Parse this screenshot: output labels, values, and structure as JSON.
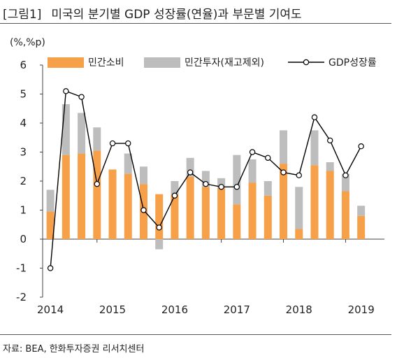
{
  "title": {
    "tag": "[그림1]",
    "main": "미국의 분기별 GDP 성장률(연율)과 부문별 기여도"
  },
  "source": "자료: BEA, 한화투자증권 리서치센터",
  "chart_data": {
    "type": "bar",
    "ylabel": "(%,%p)",
    "ylim": [
      -2,
      6
    ],
    "yticks": [
      "6",
      "5",
      "4",
      "3",
      "2",
      "1",
      "0",
      "-1",
      "-2"
    ],
    "x_years": [
      "2014",
      "2015",
      "2016",
      "2017",
      "2018",
      "2019"
    ],
    "legend": {
      "position": "top",
      "entries": [
        "민간소비",
        "민간투자(재고제외)",
        "GDP성장률"
      ]
    },
    "colors": {
      "consumption": "#F7A04A",
      "investment": "#BDBDBD",
      "gdp": "#000000"
    },
    "categories": [
      "2014Q1",
      "2014Q2",
      "2014Q3",
      "2014Q4",
      "2015Q1",
      "2015Q2",
      "2015Q3",
      "2015Q4",
      "2016Q1",
      "2016Q2",
      "2016Q3",
      "2016Q4",
      "2017Q1",
      "2017Q2",
      "2017Q3",
      "2017Q4",
      "2018Q1",
      "2018Q2",
      "2018Q3",
      "2018Q4",
      "2019Q1",
      "2019Q2"
    ],
    "series": [
      {
        "name": "민간소비",
        "kind": "bar",
        "values": [
          0.95,
          2.9,
          2.95,
          3.05,
          2.4,
          2.25,
          1.9,
          1.55,
          1.55,
          2.15,
          1.8,
          1.75,
          1.2,
          1.95,
          1.5,
          2.6,
          0.35,
          2.55,
          2.35,
          1.65,
          0.8,
          0
        ]
      },
      {
        "name": "민간투자(재고제외)",
        "kind": "bar",
        "values": [
          0.75,
          1.75,
          1.4,
          0.8,
          0,
          0.7,
          0.6,
          -0.35,
          0.45,
          0.65,
          0.55,
          0.35,
          1.7,
          0.8,
          0.5,
          1.15,
          1.45,
          1.2,
          0.3,
          0.6,
          0.35,
          0
        ]
      },
      {
        "name": "GDP성장률",
        "kind": "line",
        "values": [
          -1.0,
          5.1,
          4.9,
          1.9,
          3.3,
          3.3,
          1.0,
          0.4,
          1.5,
          2.3,
          1.9,
          1.8,
          1.8,
          3.0,
          2.8,
          2.3,
          2.2,
          4.2,
          3.4,
          2.2,
          3.2,
          null
        ]
      }
    ]
  }
}
